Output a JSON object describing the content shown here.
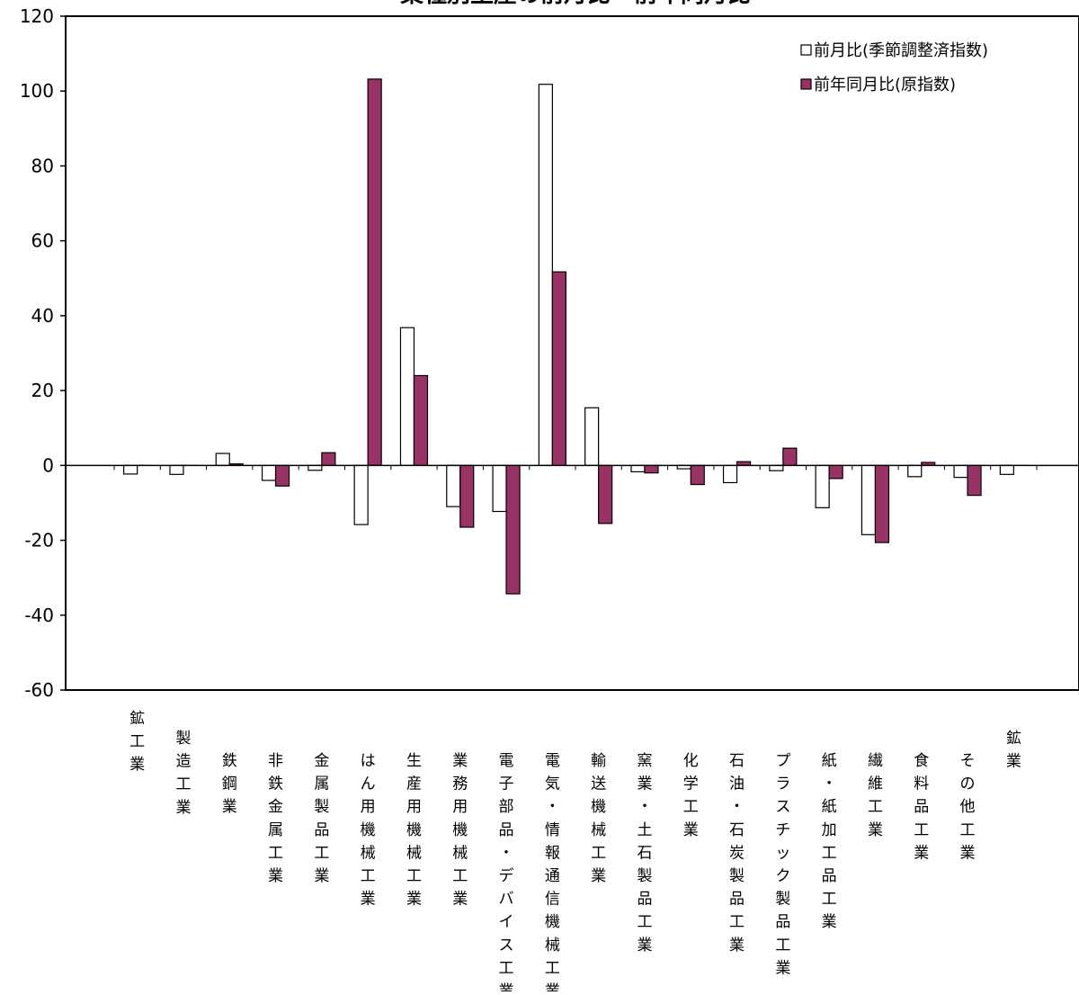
{
  "chart_data": {
    "type": "bar",
    "title": "業種別生産の前月比・前年同月比",
    "xlabel": "",
    "ylabel": "",
    "ylim": [
      -60,
      120
    ],
    "yticks": [
      -60,
      -40,
      -20,
      0,
      20,
      40,
      60,
      80,
      100,
      120
    ],
    "ytick_labels": [
      "-60",
      "-40",
      "-20",
      "0",
      "20",
      "40",
      "60",
      "80",
      "100",
      "120"
    ],
    "grid": false,
    "legend_position": "top-right",
    "categories": [
      "鉱工業",
      "製造工業",
      "鉄鋼業",
      "非鉄金属工業",
      "金属製品工業",
      "はん用機械工業",
      "生産用機械工業",
      "業務用機械工業",
      "電子部品・デバイス工業",
      "電気・情報通信機械工業",
      "輸送機械工業",
      "窯業・土石製品工業",
      "化学工業",
      "石油・石炭製品工業",
      "プラスチック製品工業",
      "紙・紙加工品工業",
      "繊維工業",
      "食料品工業",
      "その他工業",
      "鉱業"
    ],
    "series": [
      {
        "name": "前月比(季節調整済指数)",
        "color": "#ffffff",
        "stroke": "#000000",
        "values": [
          -2.3,
          -2.4,
          3.2,
          -4.0,
          -1.3,
          -15.8,
          36.8,
          -11.0,
          -12.3,
          101.8,
          15.4,
          -1.7,
          -0.9,
          -4.6,
          -1.4,
          -11.3,
          -18.5,
          -3.0,
          -3.2,
          -2.4
        ]
      },
      {
        "name": "前年同月比(原指数)",
        "color": "#993366",
        "stroke": "#000000",
        "values": [
          0.0,
          0.0,
          0.4,
          -5.5,
          3.4,
          103.2,
          24.0,
          -16.5,
          -34.3,
          51.7,
          -15.5,
          -2.0,
          -5.1,
          1.0,
          4.6,
          -3.5,
          -20.6,
          0.8,
          -8.0,
          0.0
        ]
      }
    ]
  }
}
